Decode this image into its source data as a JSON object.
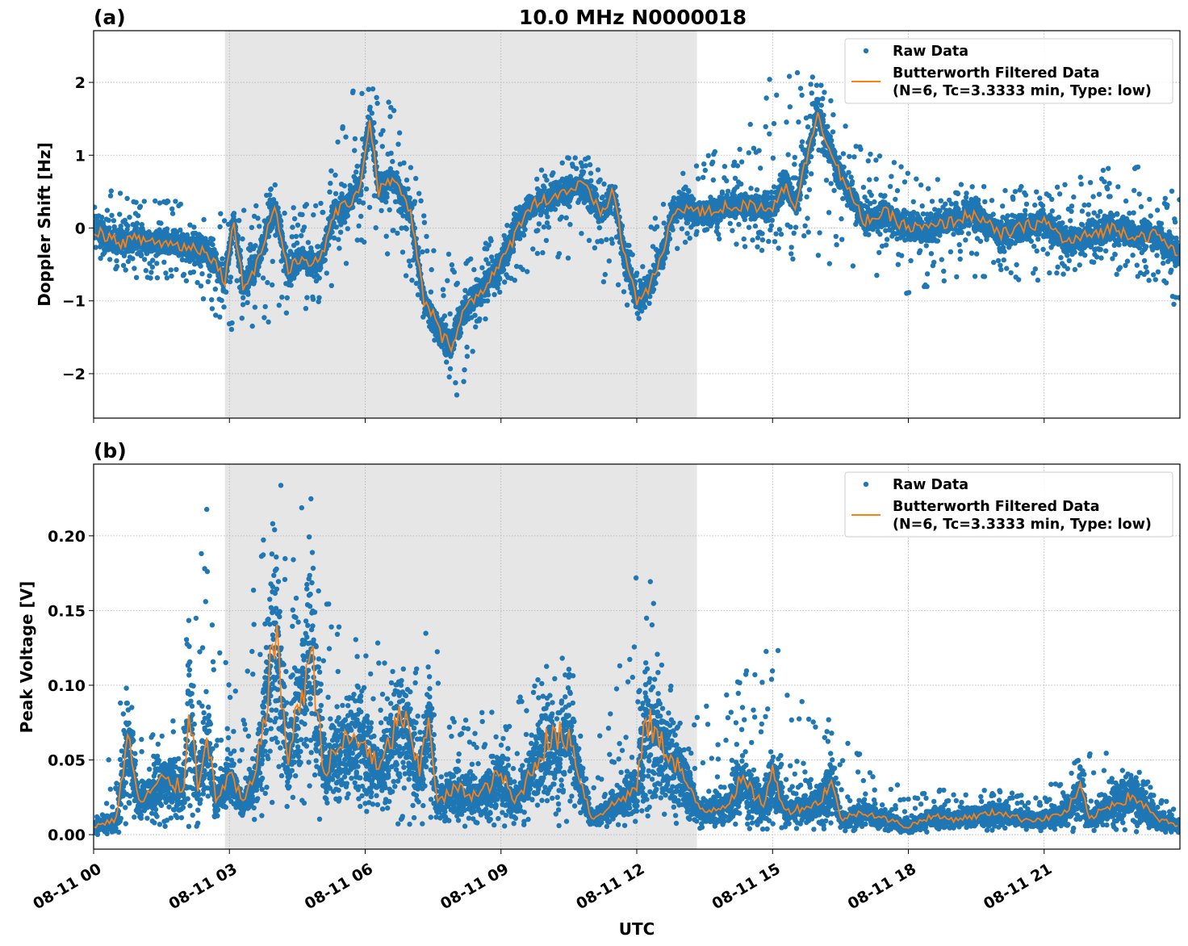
{
  "chart_data": [
    {
      "type": "scatter+line",
      "panel_label": "(a)",
      "title": "10.0 MHz N0000018",
      "xlabel": "",
      "ylabel": "Doppler Shift [Hz]",
      "x_unit": "hours UTC on 08-11",
      "xlim": [
        0,
        24
      ],
      "ylim": [
        -2.61,
        2.71
      ],
      "yticks": [
        -2,
        -1,
        0,
        1,
        2
      ],
      "ytick_labels": [
        "−2",
        "−1",
        "0",
        "1",
        "2"
      ],
      "grid": true,
      "shaded_interval": [
        2.9,
        13.33
      ],
      "legend_position": "top-right",
      "legend": [
        "Raw Data",
        "Butterworth Filtered Data",
        "(N=6, Tc=3.3333 min, Type: low)"
      ],
      "series": [
        {
          "name": "Butterworth Filtered Data",
          "color": "#ff7f0e",
          "x": [
            0,
            0.5,
            1,
            1.5,
            2,
            2.5,
            2.9,
            3.1,
            3.3,
            3.6,
            4,
            4.3,
            4.6,
            5,
            5.3,
            5.6,
            5.9,
            6.1,
            6.3,
            6.6,
            7,
            7.3,
            7.5,
            7.7,
            7.9,
            8.2,
            8.5,
            9,
            9.3,
            9.6,
            10,
            10.4,
            10.8,
            11.2,
            11.5,
            11.7,
            12,
            12.3,
            12.6,
            12.8,
            13,
            13.5,
            14,
            14.5,
            15,
            15.3,
            15.5,
            16,
            16.3,
            16.6,
            17,
            17.5,
            18,
            18.5,
            19,
            19.5,
            20,
            20.5,
            21,
            21.5,
            22,
            22.5,
            23,
            23.5,
            24
          ],
          "y": [
            0,
            -0.2,
            -0.15,
            -0.2,
            -0.25,
            -0.3,
            -0.7,
            0.1,
            -0.8,
            -0.5,
            0.3,
            -0.6,
            -0.4,
            -0.5,
            0.2,
            0.3,
            0.6,
            1.5,
            0.5,
            0.7,
            0.2,
            -1.0,
            -1.2,
            -1.5,
            -1.6,
            -1.1,
            -0.9,
            -0.5,
            -0.1,
            0.3,
            0.4,
            0.5,
            0.6,
            0.2,
            0.5,
            -0.3,
            -1.0,
            -0.8,
            -0.3,
            0.2,
            0.3,
            0.2,
            0.3,
            0.3,
            0.3,
            0.6,
            0.3,
            1.6,
            1.0,
            0.6,
            0.1,
            0.2,
            0.0,
            0.0,
            0.1,
            0.2,
            -0.1,
            0.0,
            0.1,
            -0.2,
            -0.1,
            0.0,
            -0.1,
            -0.1,
            -0.4
          ]
        },
        {
          "name": "Raw Data",
          "color": "#1f77b4",
          "envelope_x": [
            0,
            1,
            2,
            3,
            4,
            5,
            6,
            7,
            8,
            9,
            10,
            11,
            12,
            13,
            14,
            15,
            16,
            17,
            18,
            19,
            20,
            21,
            22,
            23,
            24
          ],
          "envelope_low": [
            -0.6,
            -0.7,
            -0.7,
            -1.6,
            -1.5,
            -1.0,
            -0.2,
            -0.8,
            -2.35,
            -1.0,
            -0.4,
            -0.6,
            -1.3,
            -0.2,
            -0.2,
            -0.5,
            -0.5,
            -0.6,
            -1.0,
            -0.7,
            -0.7,
            -0.9,
            -0.5,
            -0.8,
            -1.1
          ],
          "envelope_high": [
            0.6,
            0.4,
            0.4,
            0.2,
            0.6,
            0.4,
            2.45,
            1.2,
            -0.6,
            0.0,
            0.9,
            1.05,
            -0.3,
            0.8,
            1.2,
            2.3,
            2.05,
            1.1,
            0.9,
            0.6,
            0.65,
            0.5,
            0.85,
            0.9,
            0.5
          ]
        }
      ]
    },
    {
      "type": "scatter+line",
      "panel_label": "(b)",
      "xlabel": "UTC",
      "ylabel": "Peak Voltage [V]",
      "xlim": [
        0,
        24
      ],
      "ylim": [
        -0.0097,
        0.248
      ],
      "yticks": [
        0,
        0.05,
        0.1,
        0.15,
        0.2
      ],
      "ytick_labels": [
        "0.00",
        "0.05",
        "0.10",
        "0.15",
        "0.20"
      ],
      "xticks": [
        0,
        3,
        6,
        9,
        12,
        15,
        18,
        21
      ],
      "xtick_labels": [
        "08-11 00",
        "08-11 03",
        "08-11 06",
        "08-11 09",
        "08-11 12",
        "08-11 15",
        "08-11 18",
        "08-11 21"
      ],
      "grid": true,
      "shaded_interval": [
        2.9,
        13.33
      ],
      "legend_position": "top-right",
      "legend": [
        "Raw Data",
        "Butterworth Filtered Data",
        "(N=6, Tc=3.3333 min, Type: low)"
      ],
      "series": [
        {
          "name": "Butterworth Filtered Data",
          "color": "#ff7f0e",
          "x": [
            0,
            0.5,
            0.75,
            1,
            1.5,
            2,
            2.1,
            2.3,
            2.5,
            2.7,
            3,
            3.3,
            3.6,
            4,
            4.3,
            4.8,
            5.1,
            5.5,
            6,
            6.3,
            6.8,
            7.2,
            7.4,
            7.6,
            8,
            8.5,
            9,
            9.3,
            10,
            10.5,
            11,
            11.5,
            12,
            12.2,
            12.5,
            12.8,
            13,
            13.3,
            13.5,
            14,
            14.3,
            14.8,
            15,
            15.3,
            16,
            16.3,
            16.5,
            17,
            17.5,
            18,
            18.5,
            19,
            19.5,
            20,
            20.5,
            21,
            21.5,
            21.8,
            22,
            22.5,
            23,
            23.5,
            24
          ],
          "y": [
            0.005,
            0.01,
            0.065,
            0.02,
            0.035,
            0.03,
            0.09,
            0.03,
            0.07,
            0.02,
            0.04,
            0.02,
            0.04,
            0.13,
            0.05,
            0.12,
            0.04,
            0.06,
            0.06,
            0.04,
            0.08,
            0.04,
            0.08,
            0.02,
            0.03,
            0.025,
            0.04,
            0.02,
            0.06,
            0.065,
            0.01,
            0.02,
            0.03,
            0.075,
            0.06,
            0.05,
            0.04,
            0.02,
            0.015,
            0.02,
            0.035,
            0.02,
            0.04,
            0.015,
            0.02,
            0.035,
            0.01,
            0.015,
            0.01,
            0.005,
            0.012,
            0.01,
            0.012,
            0.015,
            0.01,
            0.01,
            0.015,
            0.03,
            0.01,
            0.02,
            0.025,
            0.01,
            0.005
          ]
        },
        {
          "name": "Raw Data",
          "color": "#1f77b4",
          "envelope_x": [
            0,
            0.75,
            1,
            2,
            2.1,
            2.5,
            3,
            4,
            4.8,
            5,
            6,
            7,
            7.4,
            8,
            9,
            10,
            10.5,
            11,
            12,
            12.5,
            13,
            14,
            15,
            16,
            16.5,
            17,
            18,
            19,
            20,
            21,
            22,
            23,
            24
          ],
          "envelope_low": [
            0,
            0,
            0.005,
            0.005,
            0.005,
            0.005,
            0.01,
            0.01,
            0.01,
            0.01,
            0.01,
            0.005,
            0.005,
            0.005,
            0.005,
            0.005,
            0.005,
            0.005,
            0.005,
            0.01,
            0.005,
            0.003,
            0.003,
            0.003,
            0.002,
            0.002,
            0.001,
            0.002,
            0.002,
            0.002,
            0.002,
            0.002,
            0.001
          ],
          "envelope_high": [
            0.02,
            0.14,
            0.07,
            0.08,
            0.18,
            0.228,
            0.1,
            0.235,
            0.235,
            0.16,
            0.14,
            0.11,
            0.155,
            0.08,
            0.085,
            0.12,
            0.125,
            0.06,
            0.2,
            0.16,
            0.07,
            0.1,
            0.13,
            0.08,
            0.075,
            0.05,
            0.03,
            0.03,
            0.03,
            0.03,
            0.06,
            0.045,
            0.015
          ]
        }
      ]
    }
  ]
}
